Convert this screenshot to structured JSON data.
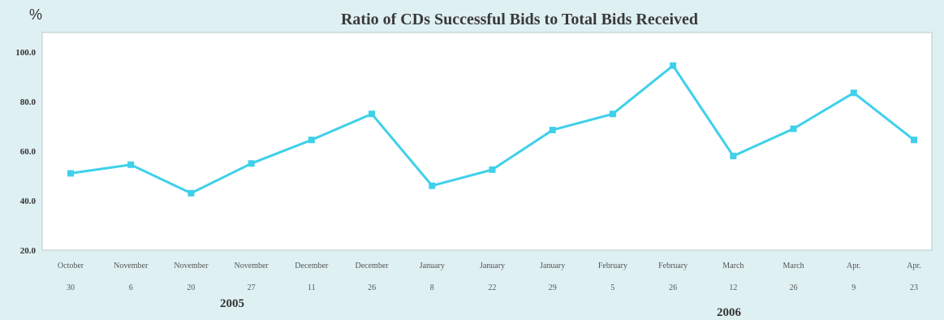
{
  "chart_data": {
    "type": "line",
    "title": "Ratio of CDs Successful Bids to Total Bids Received",
    "ylabel": "%",
    "ylim": [
      20,
      100
    ],
    "yticks": [
      "20.0",
      "40.0",
      "60.0",
      "80.0",
      "100.0"
    ],
    "x_months": [
      "October",
      "November",
      "November",
      "November",
      "December",
      "December",
      "January",
      "January",
      "January",
      "February",
      "February",
      "March",
      "March",
      "Apr.",
      "Apr."
    ],
    "x_days": [
      "30",
      "6",
      "20",
      "27",
      "11",
      "26",
      "8",
      "22",
      "29",
      "5",
      "26",
      "12",
      "26",
      "9",
      "23"
    ],
    "year_labels": [
      "2005",
      "2006"
    ],
    "series": [
      {
        "values": [
          51.0,
          54.5,
          43.0,
          55.0,
          64.5,
          75.0,
          46.0,
          52.5,
          68.5,
          75.0,
          94.5,
          58.0,
          69.0,
          83.5,
          64.5
        ]
      }
    ],
    "line_color": "#3fd0ea",
    "grid": false
  }
}
